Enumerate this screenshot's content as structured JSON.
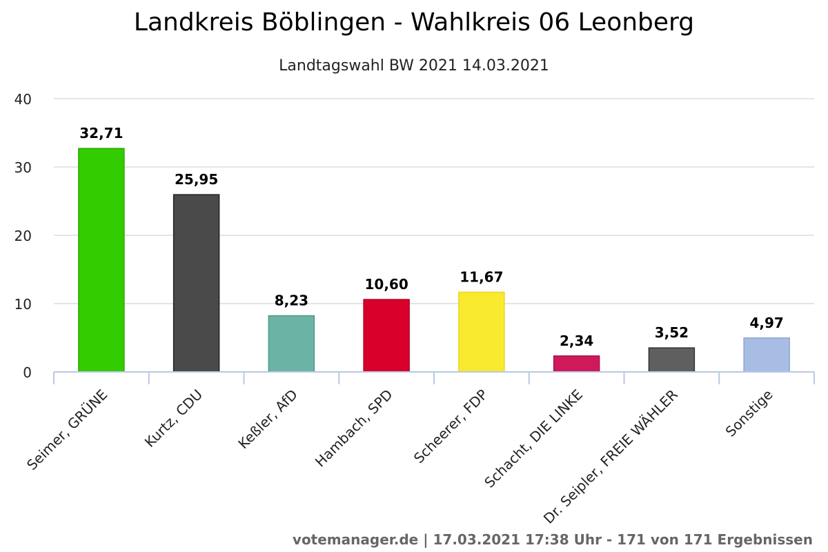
{
  "chart_data": {
    "type": "bar",
    "title": "Landkreis Böblingen - Wahlkreis 06 Leonberg",
    "subtitle": "Landtagswahl BW 2021 14.03.2021",
    "categories": [
      "Seimer, GRÜNE",
      "Kurtz, CDU",
      "Keßler, AfD",
      "Hambach, SPD",
      "Scheerer, FDP",
      "Schacht, DIE LINKE",
      "Dr. Seipler, FREIE WÄHLER",
      "Sonstige"
    ],
    "values": [
      32.71,
      25.95,
      8.23,
      10.6,
      11.67,
      2.34,
      3.52,
      4.97
    ],
    "value_labels": [
      "32,71",
      "25,95",
      "8,23",
      "10,60",
      "11,67",
      "2,34",
      "3,52",
      "4,97"
    ],
    "colors": [
      "#33cc00",
      "#4a4a4a",
      "#6bb3a5",
      "#d9002b",
      "#f9e92f",
      "#d0195b",
      "#5f5f5f",
      "#a8bde3"
    ],
    "border_colors": [
      "#2aa800",
      "#222222",
      "#4d9a8a",
      "#b30023",
      "#e8d81a",
      "#a8124a",
      "#333333",
      "#8fa5cf"
    ],
    "ylim": [
      0,
      40
    ],
    "yticks": [
      0,
      10,
      20,
      30,
      40
    ],
    "grid": true,
    "xlabel": "",
    "ylabel": ""
  },
  "credits": "votemanager.de | 17.03.2021 17:38 Uhr - 171 von 171 Ergebnissen"
}
